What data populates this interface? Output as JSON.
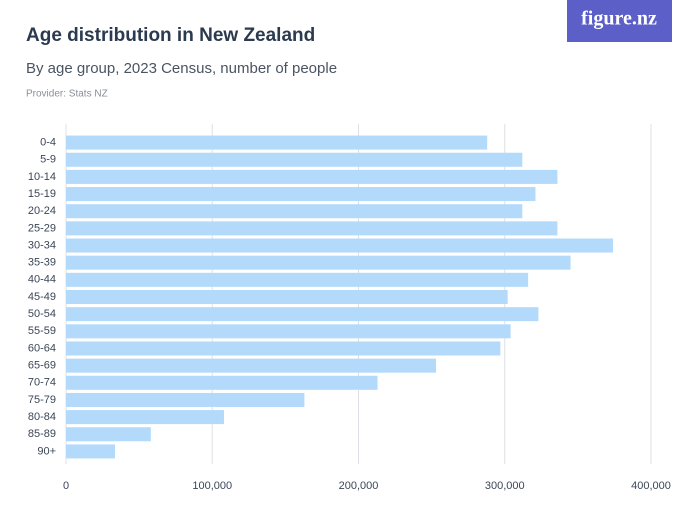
{
  "brand": "figure.nz",
  "chart_data": {
    "type": "bar",
    "orientation": "horizontal",
    "title": "Age distribution in New Zealand",
    "subtitle": "By age group, 2023 Census, number of people",
    "source": "Provider: Stats NZ",
    "categories": [
      "0-4",
      "5-9",
      "10-14",
      "15-19",
      "20-24",
      "25-29",
      "30-34",
      "35-39",
      "40-44",
      "45-49",
      "50-54",
      "55-59",
      "60-64",
      "65-69",
      "70-74",
      "75-79",
      "80-84",
      "85-89",
      "90+"
    ],
    "values": [
      288000,
      312000,
      336000,
      321000,
      312000,
      336000,
      374000,
      345000,
      316000,
      302000,
      323000,
      304000,
      297000,
      253000,
      213000,
      163000,
      108000,
      58000,
      33500
    ],
    "color": "#b3d9fb",
    "xlim": [
      0,
      400000
    ],
    "xticks": [
      0,
      {
        "value": 100000,
        "label": "100,000"
      },
      {
        "value": 200000,
        "label": "200,000"
      },
      {
        "value": 300000,
        "label": "300,000"
      },
      {
        "value": 400000,
        "label": "400,000"
      }
    ],
    "grid": true
  }
}
